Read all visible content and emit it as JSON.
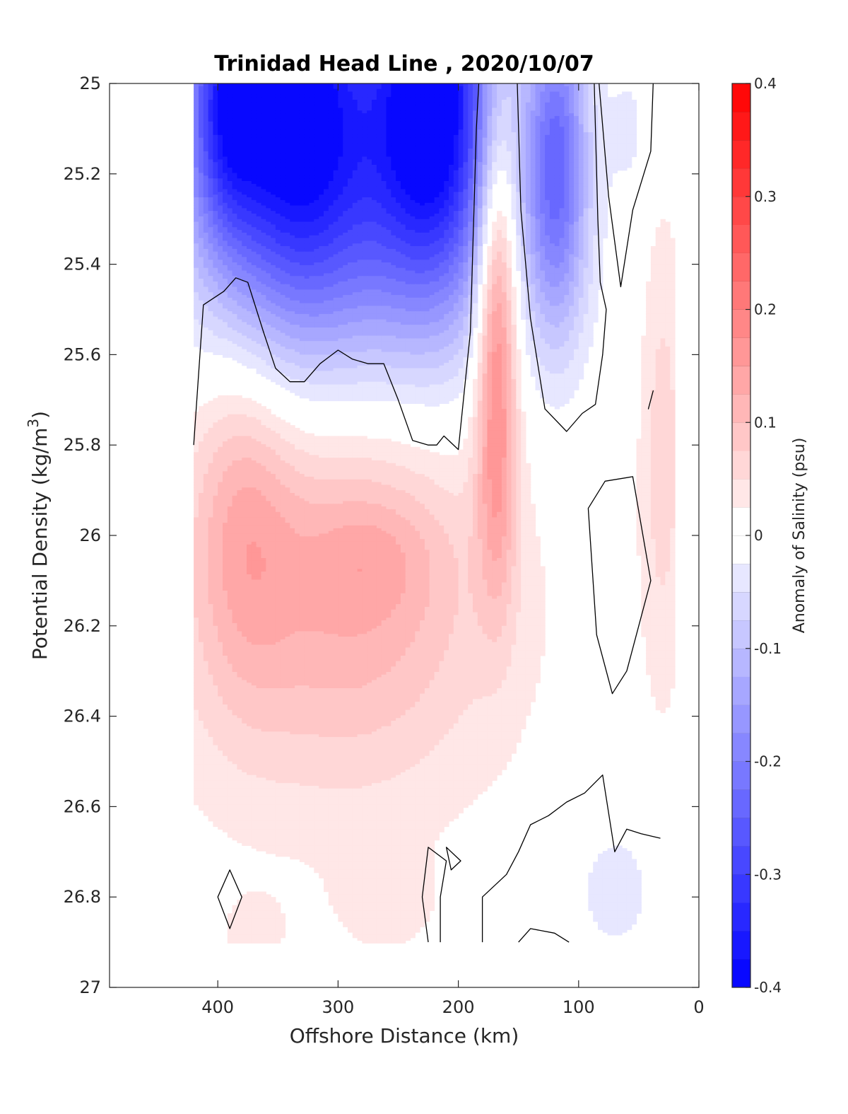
{
  "chart_data": {
    "type": "heatmap",
    "subtype": "filled-contour section",
    "title": "Trinidad Head Line , 2020/10/07",
    "xlabel": "Offshore Distance (km)",
    "ylabel_main": "Potential Density (kg/m",
    "ylabel_sup": "3",
    "ylabel_tail": ")",
    "xlim": [
      490,
      0
    ],
    "x_reversed": true,
    "ylim": [
      25,
      27
    ],
    "y_reversed": true,
    "xticks": [
      400,
      300,
      200,
      100,
      0
    ],
    "xtick_labels": [
      "400",
      "300",
      "200",
      "100",
      "0"
    ],
    "yticks": [
      25,
      25.2,
      25.4,
      25.6,
      25.8,
      26,
      26.2,
      26.4,
      26.6,
      26.8,
      27
    ],
    "ytick_labels": [
      "25",
      "25.2",
      "25.4",
      "25.6",
      "25.8",
      "26",
      "26.2",
      "26.4",
      "26.6",
      "26.8",
      "27"
    ],
    "grid": false,
    "data_extent": {
      "x": [
        420,
        20
      ],
      "y": [
        25,
        26.9
      ]
    },
    "colorbar": {
      "label": "Anomaly of Salinity (psu)",
      "limits": [
        -0.4,
        0.4
      ],
      "step": 0.025,
      "ticks": [
        0.4,
        0.3,
        0.2,
        0.1,
        0,
        -0.1,
        -0.2,
        -0.3,
        -0.4
      ],
      "tick_labels": [
        "0.4",
        "0.3",
        "0.2",
        "0.1",
        "0",
        "-0.1",
        "-0.2",
        "-0.3",
        "-0.4"
      ],
      "colors": {
        "negative": "#0000ff",
        "zero": "#ffffff",
        "positive": "#ff0000"
      }
    },
    "zero_contour_color": "#000000",
    "features": [
      {
        "kind": "negative",
        "x": 340,
        "y": 25.0,
        "value": -0.36,
        "sx": 50,
        "sy": 0.32
      },
      {
        "kind": "negative",
        "x": 220,
        "y": 25.0,
        "value": -0.36,
        "sx": 34,
        "sy": 0.3
      },
      {
        "kind": "negative",
        "x": 285,
        "y": 25.3,
        "value": -0.15,
        "sx": 90,
        "sy": 0.28
      },
      {
        "kind": "negative",
        "x": 395,
        "y": 25.05,
        "value": -0.16,
        "sx": 20,
        "sy": 0.2
      },
      {
        "kind": "negative",
        "x": 118,
        "y": 25.18,
        "value": -0.22,
        "sx": 18,
        "sy": 0.26
      },
      {
        "kind": "negative",
        "x": 58,
        "y": 25.1,
        "value": -0.03,
        "sx": 12,
        "sy": 0.1
      },
      {
        "kind": "negative",
        "x": 70,
        "y": 26.78,
        "value": -0.04,
        "sx": 28,
        "sy": 0.12
      },
      {
        "kind": "positive",
        "x": 168,
        "y": 25.45,
        "value": 0.19,
        "sx": 12,
        "sy": 0.28
      },
      {
        "kind": "positive",
        "x": 168,
        "y": 25.9,
        "value": 0.08,
        "sx": 12,
        "sy": 0.22
      },
      {
        "kind": "positive",
        "x": 290,
        "y": 26.1,
        "value": 0.09,
        "sx": 75,
        "sy": 0.28
      },
      {
        "kind": "positive",
        "x": 380,
        "y": 25.95,
        "value": 0.08,
        "sx": 30,
        "sy": 0.28
      },
      {
        "kind": "positive",
        "x": 270,
        "y": 26.05,
        "value": 0.03,
        "sx": 35,
        "sy": 0.09
      },
      {
        "kind": "positive",
        "x": 310,
        "y": 26.2,
        "value": 0.04,
        "sx": 140,
        "sy": 0.4
      },
      {
        "kind": "positive",
        "x": 30,
        "y": 25.8,
        "value": 0.06,
        "sx": 14,
        "sy": 0.4
      },
      {
        "kind": "positive",
        "x": 260,
        "y": 26.82,
        "value": 0.03,
        "sx": 30,
        "sy": 0.08
      },
      {
        "kind": "positive",
        "x": 370,
        "y": 26.88,
        "value": 0.03,
        "sx": 20,
        "sy": 0.06
      }
    ],
    "mask_polygon": [
      [
        420,
        25.0
      ],
      [
        200,
        25.0
      ],
      [
        190,
        25.0
      ],
      [
        150,
        25.0
      ],
      [
        80,
        25.0
      ],
      [
        60,
        25.0
      ],
      [
        30,
        25.0
      ],
      [
        25,
        25.1
      ],
      [
        20,
        25.1
      ],
      [
        20,
        26.3
      ],
      [
        30,
        26.5
      ],
      [
        30,
        26.7
      ],
      [
        30,
        26.9
      ],
      [
        420,
        26.9
      ]
    ],
    "zero_contours": [
      {
        "closed": false,
        "points": [
          [
            420,
            25.8
          ],
          [
            412,
            25.49
          ],
          [
            395,
            25.46
          ],
          [
            385,
            25.43
          ],
          [
            375,
            25.44
          ],
          [
            362,
            25.55
          ],
          [
            352,
            25.63
          ],
          [
            340,
            25.66
          ],
          [
            328,
            25.66
          ],
          [
            315,
            25.62
          ],
          [
            300,
            25.59
          ],
          [
            288,
            25.61
          ],
          [
            275,
            25.62
          ],
          [
            262,
            25.62
          ],
          [
            250,
            25.7
          ],
          [
            238,
            25.79
          ],
          [
            225,
            25.8
          ],
          [
            218,
            25.8
          ],
          [
            212,
            25.78
          ],
          [
            200,
            25.81
          ],
          [
            190,
            25.55
          ],
          [
            185,
            25.1
          ],
          [
            183,
            25.0
          ]
        ]
      },
      {
        "closed": false,
        "points": [
          [
            151,
            25.0
          ],
          [
            148,
            25.28
          ],
          [
            140,
            25.52
          ],
          [
            128,
            25.72
          ],
          [
            110,
            25.77
          ],
          [
            97,
            25.73
          ],
          [
            86,
            25.71
          ],
          [
            80,
            25.6
          ],
          [
            77,
            25.5
          ],
          [
            82,
            25.44
          ],
          [
            84,
            25.3
          ],
          [
            86,
            25.1
          ],
          [
            87,
            25.0
          ]
        ]
      },
      {
        "closed": false,
        "points": [
          [
            83,
            25.0
          ],
          [
            75,
            25.25
          ],
          [
            65,
            25.45
          ],
          [
            55,
            25.28
          ],
          [
            40,
            25.15
          ],
          [
            38,
            25.0
          ]
        ]
      },
      {
        "closed": true,
        "points": [
          [
            92,
            25.94
          ],
          [
            78,
            25.88
          ],
          [
            55,
            25.87
          ],
          [
            40,
            26.1
          ],
          [
            60,
            26.3
          ],
          [
            72,
            26.35
          ],
          [
            85,
            26.22
          ]
        ]
      },
      {
        "closed": true,
        "points": [
          [
            40,
            25.7
          ],
          [
            38,
            25.68
          ],
          [
            42,
            25.72
          ]
        ]
      },
      {
        "closed": false,
        "points": [
          [
            180,
            26.9
          ],
          [
            180,
            26.8
          ],
          [
            160,
            26.75
          ],
          [
            150,
            26.7
          ],
          [
            140,
            26.64
          ],
          [
            125,
            26.62
          ],
          [
            110,
            26.59
          ],
          [
            95,
            26.57
          ],
          [
            80,
            26.53
          ],
          [
            70,
            26.7
          ],
          [
            60,
            26.65
          ],
          [
            48,
            26.66
          ],
          [
            32,
            26.67
          ]
        ]
      },
      {
        "closed": true,
        "points": [
          [
            400,
            26.8
          ],
          [
            390,
            26.74
          ],
          [
            380,
            26.8
          ],
          [
            390,
            26.87
          ]
        ]
      },
      {
        "closed": false,
        "points": [
          [
            225,
            26.9
          ],
          [
            230,
            26.8
          ],
          [
            225,
            26.69
          ],
          [
            210,
            26.72
          ],
          [
            215,
            26.8
          ],
          [
            215,
            26.9
          ]
        ]
      },
      {
        "closed": true,
        "points": [
          [
            210,
            26.69
          ],
          [
            198,
            26.72
          ],
          [
            206,
            26.74
          ]
        ]
      },
      {
        "closed": false,
        "points": [
          [
            150,
            26.9
          ],
          [
            140,
            26.87
          ],
          [
            120,
            26.88
          ],
          [
            108,
            26.9
          ]
        ]
      }
    ]
  }
}
